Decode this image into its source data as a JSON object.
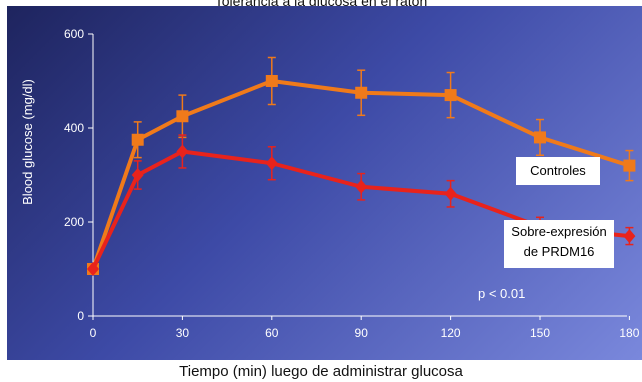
{
  "captions": {
    "top": "Tolerancia a la glucosa en el ratón",
    "bottom": "Tiempo (min) luego de administrar glucosa"
  },
  "annotations": {
    "pvalue": "p < 0.01"
  },
  "chart_data": {
    "type": "line",
    "title": "",
    "xlabel": "Tiempo (min) luego de administrar glucosa",
    "ylabel": "Blood glucose (mg/dl)",
    "x": [
      0,
      15,
      30,
      60,
      90,
      120,
      150,
      180
    ],
    "xticks": [
      0,
      30,
      60,
      90,
      120,
      150,
      180
    ],
    "ylim": [
      0,
      600
    ],
    "yticks": [
      0,
      200,
      400,
      600
    ],
    "grid": false,
    "series": [
      {
        "name": "Controles",
        "color": "#f07a1a",
        "marker": "square",
        "values": [
          100,
          375,
          425,
          500,
          475,
          470,
          380,
          320
        ],
        "errors": [
          0,
          38,
          45,
          50,
          48,
          48,
          38,
          32
        ]
      },
      {
        "name": "Sobre-expresión de PRDM16",
        "color": "#e8231c",
        "marker": "diamond",
        "values": [
          100,
          300,
          350,
          325,
          275,
          260,
          190,
          170
        ],
        "errors": [
          0,
          30,
          35,
          35,
          28,
          28,
          20,
          18
        ]
      }
    ],
    "legend": [
      "Controles",
      "Sobre-expresión de PRDM16"
    ]
  }
}
